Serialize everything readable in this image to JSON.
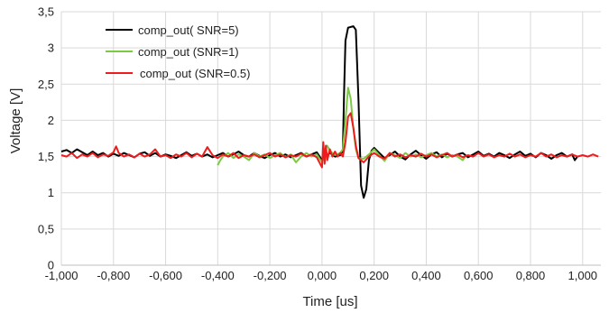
{
  "chart_data": {
    "type": "line",
    "title": "",
    "xlabel": "Time [us]",
    "ylabel": "Voltage [V]",
    "xlim": [
      -1.0,
      1.07
    ],
    "ylim": [
      0,
      3.5
    ],
    "x_ticks": [
      -1.0,
      -0.8,
      -0.6,
      -0.4,
      -0.2,
      0.0,
      0.2,
      0.4,
      0.6,
      0.8,
      1.0
    ],
    "x_tick_labels": [
      "-1,000",
      "-0,800",
      "-0,600",
      "-0,400",
      "-0,200",
      "0,000",
      "0,200",
      "0,400",
      "0,600",
      "0,800",
      "1,000"
    ],
    "y_ticks": [
      0,
      0.5,
      1,
      1.5,
      2,
      2.5,
      3,
      3.5
    ],
    "y_tick_labels": [
      "0",
      "0,5",
      "1",
      "1,5",
      "2",
      "2,5",
      "3",
      "3,5"
    ],
    "grid": "vertical and horizontal",
    "legend_position": "top-left",
    "series": [
      {
        "name": "comp_out( SNR=5)",
        "color": "#000000",
        "points": [
          [
            -1.0,
            1.57
          ],
          [
            -0.98,
            1.59
          ],
          [
            -0.96,
            1.55
          ],
          [
            -0.94,
            1.6
          ],
          [
            -0.92,
            1.56
          ],
          [
            -0.9,
            1.52
          ],
          [
            -0.88,
            1.57
          ],
          [
            -0.86,
            1.52
          ],
          [
            -0.84,
            1.55
          ],
          [
            -0.82,
            1.5
          ],
          [
            -0.8,
            1.54
          ],
          [
            -0.78,
            1.51
          ],
          [
            -0.76,
            1.55
          ],
          [
            -0.74,
            1.52
          ],
          [
            -0.72,
            1.49
          ],
          [
            -0.7,
            1.54
          ],
          [
            -0.68,
            1.56
          ],
          [
            -0.66,
            1.51
          ],
          [
            -0.64,
            1.55
          ],
          [
            -0.62,
            1.5
          ],
          [
            -0.6,
            1.53
          ],
          [
            -0.58,
            1.51
          ],
          [
            -0.56,
            1.48
          ],
          [
            -0.54,
            1.52
          ],
          [
            -0.52,
            1.56
          ],
          [
            -0.5,
            1.51
          ],
          [
            -0.48,
            1.54
          ],
          [
            -0.46,
            1.5
          ],
          [
            -0.44,
            1.53
          ],
          [
            -0.42,
            1.49
          ],
          [
            -0.4,
            1.52
          ],
          [
            -0.38,
            1.55
          ],
          [
            -0.36,
            1.5
          ],
          [
            -0.34,
            1.53
          ],
          [
            -0.32,
            1.57
          ],
          [
            -0.3,
            1.52
          ],
          [
            -0.28,
            1.5
          ],
          [
            -0.26,
            1.55
          ],
          [
            -0.24,
            1.51
          ],
          [
            -0.22,
            1.48
          ],
          [
            -0.2,
            1.52
          ],
          [
            -0.18,
            1.55
          ],
          [
            -0.16,
            1.5
          ],
          [
            -0.14,
            1.53
          ],
          [
            -0.12,
            1.49
          ],
          [
            -0.1,
            1.52
          ],
          [
            -0.08,
            1.55
          ],
          [
            -0.06,
            1.5
          ],
          [
            -0.04,
            1.53
          ],
          [
            -0.02,
            1.56
          ],
          [
            0.0,
            1.45
          ],
          [
            0.01,
            1.6
          ],
          [
            0.02,
            1.52
          ],
          [
            0.03,
            1.55
          ],
          [
            0.05,
            1.5
          ],
          [
            0.07,
            1.52
          ],
          [
            0.08,
            1.58
          ],
          [
            0.085,
            2.4
          ],
          [
            0.09,
            3.1
          ],
          [
            0.1,
            3.28
          ],
          [
            0.12,
            3.3
          ],
          [
            0.13,
            3.25
          ],
          [
            0.14,
            2.3
          ],
          [
            0.15,
            1.1
          ],
          [
            0.16,
            0.93
          ],
          [
            0.17,
            1.05
          ],
          [
            0.18,
            1.45
          ],
          [
            0.19,
            1.58
          ],
          [
            0.2,
            1.62
          ],
          [
            0.22,
            1.55
          ],
          [
            0.24,
            1.48
          ],
          [
            0.26,
            1.52
          ],
          [
            0.28,
            1.57
          ],
          [
            0.3,
            1.5
          ],
          [
            0.32,
            1.46
          ],
          [
            0.34,
            1.53
          ],
          [
            0.36,
            1.58
          ],
          [
            0.38,
            1.52
          ],
          [
            0.4,
            1.47
          ],
          [
            0.42,
            1.53
          ],
          [
            0.44,
            1.56
          ],
          [
            0.46,
            1.49
          ],
          [
            0.48,
            1.54
          ],
          [
            0.5,
            1.5
          ],
          [
            0.52,
            1.53
          ],
          [
            0.54,
            1.55
          ],
          [
            0.56,
            1.49
          ],
          [
            0.58,
            1.53
          ],
          [
            0.6,
            1.57
          ],
          [
            0.62,
            1.51
          ],
          [
            0.64,
            1.54
          ],
          [
            0.66,
            1.5
          ],
          [
            0.68,
            1.55
          ],
          [
            0.7,
            1.52
          ],
          [
            0.72,
            1.48
          ],
          [
            0.74,
            1.53
          ],
          [
            0.76,
            1.57
          ],
          [
            0.78,
            1.51
          ],
          [
            0.8,
            1.54
          ],
          [
            0.82,
            1.49
          ],
          [
            0.84,
            1.55
          ],
          [
            0.86,
            1.52
          ],
          [
            0.88,
            1.47
          ],
          [
            0.9,
            1.52
          ],
          [
            0.92,
            1.55
          ],
          [
            0.94,
            1.5
          ],
          [
            0.96,
            1.53
          ],
          [
            0.97,
            1.45
          ],
          [
            0.98,
            1.5
          ]
        ]
      },
      {
        "name": "comp_out (SNR=1)",
        "color": "#7cc942",
        "points": [
          [
            -0.4,
            1.38
          ],
          [
            -0.39,
            1.45
          ],
          [
            -0.38,
            1.5
          ],
          [
            -0.36,
            1.55
          ],
          [
            -0.34,
            1.48
          ],
          [
            -0.32,
            1.53
          ],
          [
            -0.3,
            1.5
          ],
          [
            -0.28,
            1.45
          ],
          [
            -0.26,
            1.55
          ],
          [
            -0.24,
            1.5
          ],
          [
            -0.22,
            1.53
          ],
          [
            -0.2,
            1.48
          ],
          [
            -0.18,
            1.52
          ],
          [
            -0.16,
            1.55
          ],
          [
            -0.14,
            1.49
          ],
          [
            -0.12,
            1.53
          ],
          [
            -0.1,
            1.42
          ],
          [
            -0.08,
            1.5
          ],
          [
            -0.06,
            1.55
          ],
          [
            -0.04,
            1.5
          ],
          [
            -0.02,
            1.53
          ],
          [
            0.0,
            1.42
          ],
          [
            0.01,
            1.6
          ],
          [
            0.02,
            1.65
          ],
          [
            0.03,
            1.58
          ],
          [
            0.05,
            1.52
          ],
          [
            0.07,
            1.55
          ],
          [
            0.08,
            1.6
          ],
          [
            0.09,
            2.0
          ],
          [
            0.1,
            2.45
          ],
          [
            0.11,
            2.3
          ],
          [
            0.12,
            1.9
          ],
          [
            0.13,
            1.6
          ],
          [
            0.14,
            1.48
          ],
          [
            0.16,
            1.47
          ],
          [
            0.18,
            1.53
          ],
          [
            0.2,
            1.6
          ],
          [
            0.22,
            1.52
          ],
          [
            0.24,
            1.44
          ],
          [
            0.26,
            1.55
          ],
          [
            0.28,
            1.52
          ],
          [
            0.3,
            1.48
          ],
          [
            0.32,
            1.55
          ],
          [
            0.34,
            1.5
          ],
          [
            0.36,
            1.53
          ],
          [
            0.38,
            1.49
          ],
          [
            0.4,
            1.52
          ],
          [
            0.42,
            1.55
          ],
          [
            0.44,
            1.5
          ],
          [
            0.46,
            1.53
          ],
          [
            0.48,
            1.49
          ],
          [
            0.5,
            1.52
          ],
          [
            0.52,
            1.5
          ],
          [
            0.54,
            1.45
          ],
          [
            0.55,
            1.5
          ]
        ]
      },
      {
        "name": "comp_out (SNR=0.5)",
        "color": "#ee1c1c",
        "points": [
          [
            -1.0,
            1.52
          ],
          [
            -0.98,
            1.5
          ],
          [
            -0.96,
            1.55
          ],
          [
            -0.94,
            1.48
          ],
          [
            -0.92,
            1.53
          ],
          [
            -0.9,
            1.5
          ],
          [
            -0.88,
            1.55
          ],
          [
            -0.86,
            1.49
          ],
          [
            -0.84,
            1.53
          ],
          [
            -0.82,
            1.51
          ],
          [
            -0.8,
            1.56
          ],
          [
            -0.79,
            1.64
          ],
          [
            -0.78,
            1.55
          ],
          [
            -0.76,
            1.5
          ],
          [
            -0.74,
            1.53
          ],
          [
            -0.72,
            1.49
          ],
          [
            -0.7,
            1.54
          ],
          [
            -0.68,
            1.5
          ],
          [
            -0.66,
            1.53
          ],
          [
            -0.64,
            1.6
          ],
          [
            -0.62,
            1.5
          ],
          [
            -0.6,
            1.52
          ],
          [
            -0.58,
            1.48
          ],
          [
            -0.56,
            1.53
          ],
          [
            -0.54,
            1.5
          ],
          [
            -0.52,
            1.55
          ],
          [
            -0.5,
            1.49
          ],
          [
            -0.48,
            1.54
          ],
          [
            -0.46,
            1.5
          ],
          [
            -0.44,
            1.63
          ],
          [
            -0.42,
            1.52
          ],
          [
            -0.4,
            1.48
          ],
          [
            -0.38,
            1.53
          ],
          [
            -0.36,
            1.5
          ],
          [
            -0.34,
            1.55
          ],
          [
            -0.32,
            1.48
          ],
          [
            -0.3,
            1.52
          ],
          [
            -0.28,
            1.5
          ],
          [
            -0.26,
            1.53
          ],
          [
            -0.24,
            1.49
          ],
          [
            -0.22,
            1.52
          ],
          [
            -0.2,
            1.55
          ],
          [
            -0.18,
            1.5
          ],
          [
            -0.16,
            1.53
          ],
          [
            -0.14,
            1.49
          ],
          [
            -0.12,
            1.52
          ],
          [
            -0.1,
            1.5
          ],
          [
            -0.08,
            1.54
          ],
          [
            -0.06,
            1.5
          ],
          [
            -0.04,
            1.53
          ],
          [
            -0.02,
            1.49
          ],
          [
            0.0,
            1.35
          ],
          [
            0.005,
            1.7
          ],
          [
            0.01,
            1.4
          ],
          [
            0.015,
            1.65
          ],
          [
            0.02,
            1.45
          ],
          [
            0.03,
            1.6
          ],
          [
            0.04,
            1.5
          ],
          [
            0.05,
            1.57
          ],
          [
            0.06,
            1.5
          ],
          [
            0.07,
            1.55
          ],
          [
            0.08,
            1.5
          ],
          [
            0.09,
            1.7
          ],
          [
            0.1,
            2.05
          ],
          [
            0.11,
            2.1
          ],
          [
            0.12,
            1.9
          ],
          [
            0.13,
            1.65
          ],
          [
            0.14,
            1.48
          ],
          [
            0.16,
            1.42
          ],
          [
            0.18,
            1.5
          ],
          [
            0.2,
            1.55
          ],
          [
            0.22,
            1.5
          ],
          [
            0.24,
            1.47
          ],
          [
            0.26,
            1.55
          ],
          [
            0.28,
            1.5
          ],
          [
            0.3,
            1.53
          ],
          [
            0.32,
            1.49
          ],
          [
            0.34,
            1.52
          ],
          [
            0.36,
            1.5
          ],
          [
            0.38,
            1.54
          ],
          [
            0.4,
            1.5
          ],
          [
            0.42,
            1.53
          ],
          [
            0.44,
            1.49
          ],
          [
            0.46,
            1.52
          ],
          [
            0.48,
            1.55
          ],
          [
            0.5,
            1.5
          ],
          [
            0.52,
            1.53
          ],
          [
            0.54,
            1.49
          ],
          [
            0.56,
            1.52
          ],
          [
            0.58,
            1.5
          ],
          [
            0.6,
            1.55
          ],
          [
            0.62,
            1.5
          ],
          [
            0.64,
            1.53
          ],
          [
            0.66,
            1.49
          ],
          [
            0.68,
            1.52
          ],
          [
            0.7,
            1.5
          ],
          [
            0.72,
            1.54
          ],
          [
            0.74,
            1.5
          ],
          [
            0.76,
            1.53
          ],
          [
            0.78,
            1.49
          ],
          [
            0.8,
            1.52
          ],
          [
            0.82,
            1.5
          ],
          [
            0.84,
            1.55
          ],
          [
            0.86,
            1.5
          ],
          [
            0.88,
            1.53
          ],
          [
            0.9,
            1.49
          ],
          [
            0.92,
            1.52
          ],
          [
            0.94,
            1.5
          ],
          [
            0.96,
            1.53
          ],
          [
            0.98,
            1.5
          ],
          [
            1.0,
            1.52
          ],
          [
            1.02,
            1.5
          ],
          [
            1.04,
            1.53
          ],
          [
            1.06,
            1.5
          ]
        ]
      }
    ]
  }
}
